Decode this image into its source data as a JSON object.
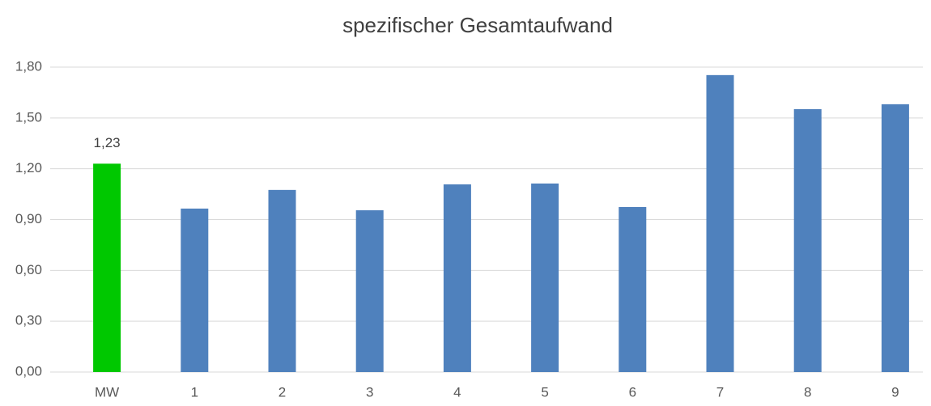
{
  "chart_data": {
    "type": "bar",
    "title": "spezifischer Gesamtaufwand",
    "categories": [
      "MW",
      "1",
      "2",
      "3",
      "4",
      "5",
      "6",
      "7",
      "8",
      "9"
    ],
    "values": [
      1.23,
      0.965,
      1.075,
      0.955,
      1.108,
      1.113,
      0.974,
      1.753,
      1.552,
      1.581
    ],
    "value_labels": [
      "1,23",
      null,
      null,
      null,
      null,
      null,
      null,
      null,
      null,
      null
    ],
    "colors": [
      "#00c800",
      "#4f81bd",
      "#4f81bd",
      "#4f81bd",
      "#4f81bd",
      "#4f81bd",
      "#4f81bd",
      "#4f81bd",
      "#4f81bd",
      "#4f81bd"
    ],
    "ylim": [
      0,
      1.8
    ],
    "yticks": [
      {
        "value": 0,
        "label": "0,00"
      },
      {
        "value": 0.3,
        "label": "0,30"
      },
      {
        "value": 0.6,
        "label": "0,60"
      },
      {
        "value": 0.9,
        "label": "0,90"
      },
      {
        "value": 1.2,
        "label": "1,20"
      },
      {
        "value": 1.5,
        "label": "1,50"
      },
      {
        "value": 1.8,
        "label": "1,80"
      }
    ],
    "grid": true
  }
}
